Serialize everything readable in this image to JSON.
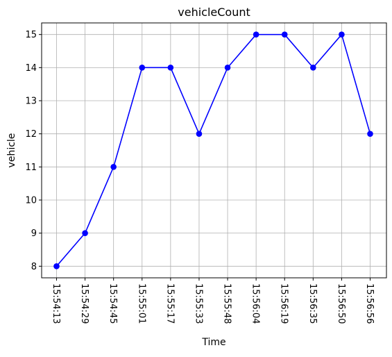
{
  "chart_data": {
    "type": "line",
    "title": "vehicleCount",
    "xlabel": "Time",
    "ylabel": "vehicle",
    "categories": [
      "15:54:13",
      "15:54:29",
      "15:54:45",
      "15:55:01",
      "15:55:17",
      "15:55:33",
      "15:55:48",
      "15:56:04",
      "15:56:19",
      "15:56:35",
      "15:56:50",
      "15:56:56"
    ],
    "series": [
      {
        "values": [
          8,
          9,
          11,
          14,
          14,
          12,
          14,
          15,
          15,
          14,
          15,
          12
        ],
        "color": "#0000ff",
        "marker": "circle"
      }
    ],
    "ylim": [
      7.65,
      15.35
    ],
    "yticks": [
      8,
      9,
      10,
      11,
      12,
      13,
      14,
      15
    ],
    "grid": true,
    "legend": false
  }
}
